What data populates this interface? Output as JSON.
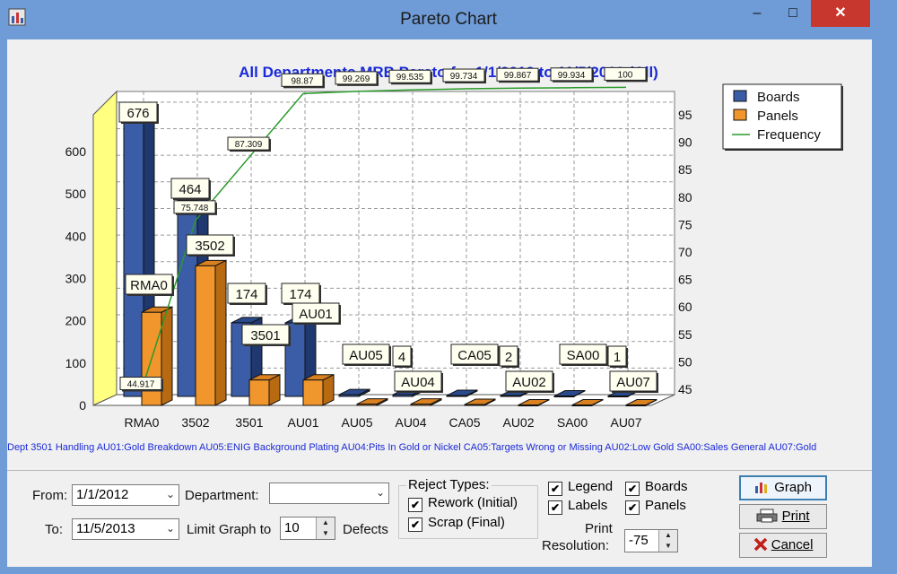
{
  "window": {
    "title": "Pareto Chart",
    "minimize": "–",
    "maximize": "□",
    "close": "✕"
  },
  "chart_data": {
    "type": "bar",
    "title": "All Departments MRB Pareto for 1/1/2012 to 11/5/2013 (All)",
    "categories": [
      "RMA0",
      "3502",
      "3501",
      "AU01",
      "AU05",
      "AU04",
      "CA05",
      "AU02",
      "SA00",
      "AU07"
    ],
    "series": [
      {
        "name": "Boards",
        "values": [
          676,
          464,
          174,
          174,
          4,
          4,
          2,
          2,
          1,
          1
        ],
        "color": "#3b5da8"
      },
      {
        "name": "Panels",
        "values": [
          220,
          330,
          60,
          60,
          3,
          3,
          2,
          1,
          1,
          1
        ],
        "color": "#f0962c"
      },
      {
        "name": "Frequency",
        "values": [
          44.917,
          75.748,
          87.309,
          98.87,
          99.269,
          99.535,
          99.734,
          99.867,
          99.934,
          100
        ],
        "color": "#2a9a2a"
      }
    ],
    "bar_labels": [
      "676",
      "464",
      "174",
      "174",
      "4",
      "",
      "2",
      "",
      "1",
      ""
    ],
    "dept_labels": [
      "RMA0",
      "3502",
      "3501",
      "AU01",
      "AU05",
      "AU04",
      "CA05",
      "AU02",
      "SA00",
      "AU07"
    ],
    "freq_labels": [
      "44.917",
      "75.748",
      "87.309",
      "98.87",
      "99.269",
      "99.535",
      "99.734",
      "99.867",
      "99.934",
      "100"
    ],
    "y_left_ticks": [
      "0",
      "100",
      "200",
      "300",
      "400",
      "500",
      "600"
    ],
    "y_right_ticks": [
      "45",
      "50",
      "55",
      "60",
      "65",
      "70",
      "75",
      "80",
      "85",
      "90",
      "95"
    ],
    "ylim": [
      0,
      700
    ],
    "y2lim": [
      45,
      100
    ],
    "grid": true,
    "legend_position": "top-right",
    "footnote": "Dept 3501 Handling AU01:Gold Breakdown AU05:ENIG Background Plating AU04:Pits In Gold or Nickel CA05:Targets Wrong or Missing AU02:Low Gold SA00:Sales General AU07:Gold"
  },
  "controls": {
    "from_label": "From:",
    "from_value": "1/1/2012",
    "to_label": "To:",
    "to_value": "11/5/2013",
    "department_label": "Department:",
    "department_value": "",
    "limit_label": "Limit Graph to",
    "limit_value": "10",
    "defects_label": "Defects",
    "reject_title": "Reject Types:",
    "rework_label": "Rework (Initial)",
    "scrap_label": "Scrap (Final)",
    "legend_label": "Legend",
    "labels_label": "Labels",
    "boards_label": "Boards",
    "panels_label": "Panels",
    "print_res_label1": "Print",
    "print_res_label2": "Resolution:",
    "print_res_value": "-75",
    "graph_btn": "Graph",
    "print_btn": "Print",
    "cancel_btn": "Cancel",
    "check": "✔",
    "dropdown_arrow": "⌄",
    "spin_up": "▲",
    "spin_down": "▼"
  },
  "icons": {
    "app": "app-chart-icon",
    "graph": "graph-icon",
    "print": "printer-icon",
    "cancel": "cancel-x-icon"
  }
}
